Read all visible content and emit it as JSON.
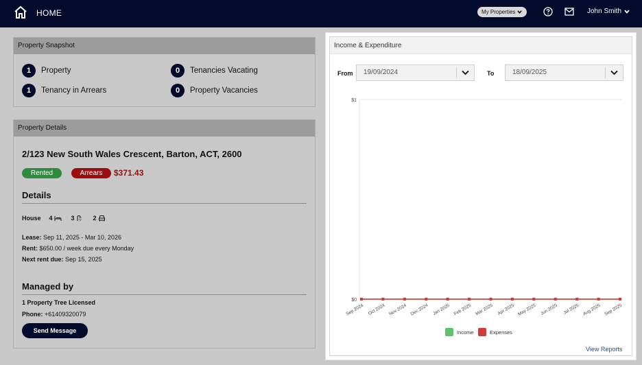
{
  "header": {
    "home_label": "HOME",
    "properties_select": "My Properties",
    "user_name": "John Smith"
  },
  "snapshot": {
    "title": "Property Snapshot",
    "items": [
      {
        "count": "1",
        "label": "Property"
      },
      {
        "count": "0",
        "label": "Tenancies Vacating"
      },
      {
        "count": "1",
        "label": "Tenancy in Arrears"
      },
      {
        "count": "0",
        "label": "Property Vacancies"
      }
    ]
  },
  "details": {
    "title": "Property Details",
    "address": "2/123 New South Wales Crescent, Barton, ACT, 2600",
    "status_badge": "Rented",
    "arrears_badge": "Arrears",
    "arrears_amount": "$371.43",
    "details_heading": "Details",
    "property_type": "House",
    "bedrooms": "4",
    "bathrooms": "3",
    "car_spaces": "2",
    "lease_label": "Lease:",
    "lease_value": "Sep 11, 2025 - Mar 10, 2026",
    "rent_label": "Rent:",
    "rent_value": "$650.00 / week due every Monday",
    "next_due_label": "Next rent due:",
    "next_due_value": "Sep 15, 2025",
    "managed_heading": "Managed by",
    "manager_name": "1 Property Tree Licensed",
    "phone_label": "Phone:",
    "phone_value": "+61409320079",
    "send_button": "Send Message"
  },
  "income": {
    "title": "Income & Expenditure",
    "from_label": "From",
    "from_value": "19/09/2024",
    "to_label": "To",
    "to_value": "18/09/2025",
    "view_reports": "View Reports"
  },
  "colors": {
    "navy": "#030a2c",
    "income": "#5cc46c",
    "expenses": "#d43a3a"
  },
  "chart_data": {
    "type": "line",
    "categories": [
      "Sep 2024",
      "Oct 2024",
      "Nov 2024",
      "Dec 2024",
      "Jan 2025",
      "Feb 2025",
      "Mar 2025",
      "Apr 2025",
      "May 2025",
      "Jun 2025",
      "Jul 2025",
      "Aug 2025",
      "Sep 2025"
    ],
    "series": [
      {
        "name": "Income",
        "values": [
          0,
          0,
          0,
          0,
          0,
          0,
          0,
          0,
          0,
          0,
          0,
          0,
          0
        ]
      },
      {
        "name": "Expenses",
        "values": [
          0,
          0,
          0,
          0,
          0,
          0,
          0,
          0,
          0,
          0,
          0,
          0,
          0
        ]
      }
    ],
    "yticks": [
      "$0",
      "$1"
    ],
    "ylim": [
      0,
      1
    ],
    "grid": true,
    "legend": "bottom"
  }
}
